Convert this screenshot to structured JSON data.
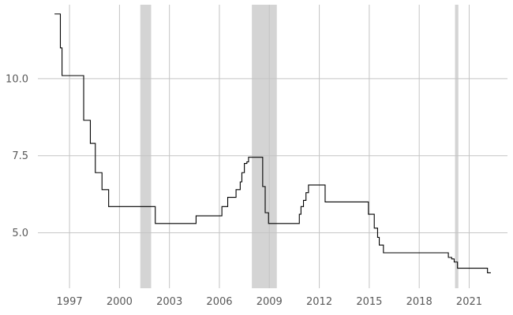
{
  "chart_data": {
    "type": "line",
    "title": "",
    "xlabel": "",
    "ylabel": "",
    "xlim": [
      1995.1,
      2023.3
    ],
    "ylim": [
      3.2,
      12.4
    ],
    "x_ticks": [
      1997,
      2000,
      2003,
      2006,
      2009,
      2012,
      2015,
      2018,
      2021
    ],
    "y_ticks": [
      5.0,
      7.5,
      10.0
    ],
    "x_tick_labels": [
      "1997",
      "2000",
      "2003",
      "2006",
      "2009",
      "2012",
      "2015",
      "2018",
      "2021"
    ],
    "y_tick_labels": [
      "5.0",
      "7.5",
      "10.0"
    ],
    "grid": true,
    "recession_bands": [
      {
        "start": 2001.25,
        "end": 2001.9
      },
      {
        "start": 2007.95,
        "end": 2009.45
      },
      {
        "start": 2020.15,
        "end": 2020.35
      }
    ],
    "series": [
      {
        "step": true,
        "color": "#000000",
        "points": [
          [
            1996.1,
            12.1
          ],
          [
            1996.45,
            11.0
          ],
          [
            1996.55,
            10.1
          ],
          [
            1997.75,
            10.1
          ],
          [
            1997.85,
            8.65
          ],
          [
            1998.2,
            8.65
          ],
          [
            1998.25,
            7.9
          ],
          [
            1998.5,
            7.9
          ],
          [
            1998.55,
            6.95
          ],
          [
            1998.9,
            6.95
          ],
          [
            1998.95,
            6.4
          ],
          [
            1999.3,
            6.4
          ],
          [
            1999.35,
            5.85
          ],
          [
            2002.0,
            5.85
          ],
          [
            2002.15,
            5.3
          ],
          [
            2004.5,
            5.3
          ],
          [
            2004.6,
            5.55
          ],
          [
            2006.1,
            5.55
          ],
          [
            2006.15,
            5.85
          ],
          [
            2006.45,
            5.85
          ],
          [
            2006.5,
            6.15
          ],
          [
            2006.95,
            6.15
          ],
          [
            2007.0,
            6.4
          ],
          [
            2007.15,
            6.4
          ],
          [
            2007.25,
            6.65
          ],
          [
            2007.35,
            6.95
          ],
          [
            2007.5,
            7.25
          ],
          [
            2007.65,
            7.3
          ],
          [
            2007.75,
            7.45
          ],
          [
            2008.45,
            7.45
          ],
          [
            2008.6,
            6.5
          ],
          [
            2008.75,
            5.65
          ],
          [
            2008.95,
            5.3
          ],
          [
            2010.65,
            5.3
          ],
          [
            2010.8,
            5.6
          ],
          [
            2010.9,
            5.85
          ],
          [
            2011.05,
            6.05
          ],
          [
            2011.2,
            6.3
          ],
          [
            2011.35,
            6.55
          ],
          [
            2012.15,
            6.55
          ],
          [
            2012.35,
            6.0
          ],
          [
            2014.9,
            6.0
          ],
          [
            2014.95,
            5.6
          ],
          [
            2015.15,
            5.6
          ],
          [
            2015.3,
            5.15
          ],
          [
            2015.5,
            4.85
          ],
          [
            2015.6,
            4.6
          ],
          [
            2015.85,
            4.35
          ],
          [
            2019.6,
            4.35
          ],
          [
            2019.75,
            4.2
          ],
          [
            2019.95,
            4.15
          ],
          [
            2020.1,
            4.05
          ],
          [
            2020.3,
            3.85
          ],
          [
            2021.95,
            3.85
          ],
          [
            2022.1,
            3.7
          ],
          [
            2022.3,
            3.7
          ]
        ]
      }
    ]
  }
}
